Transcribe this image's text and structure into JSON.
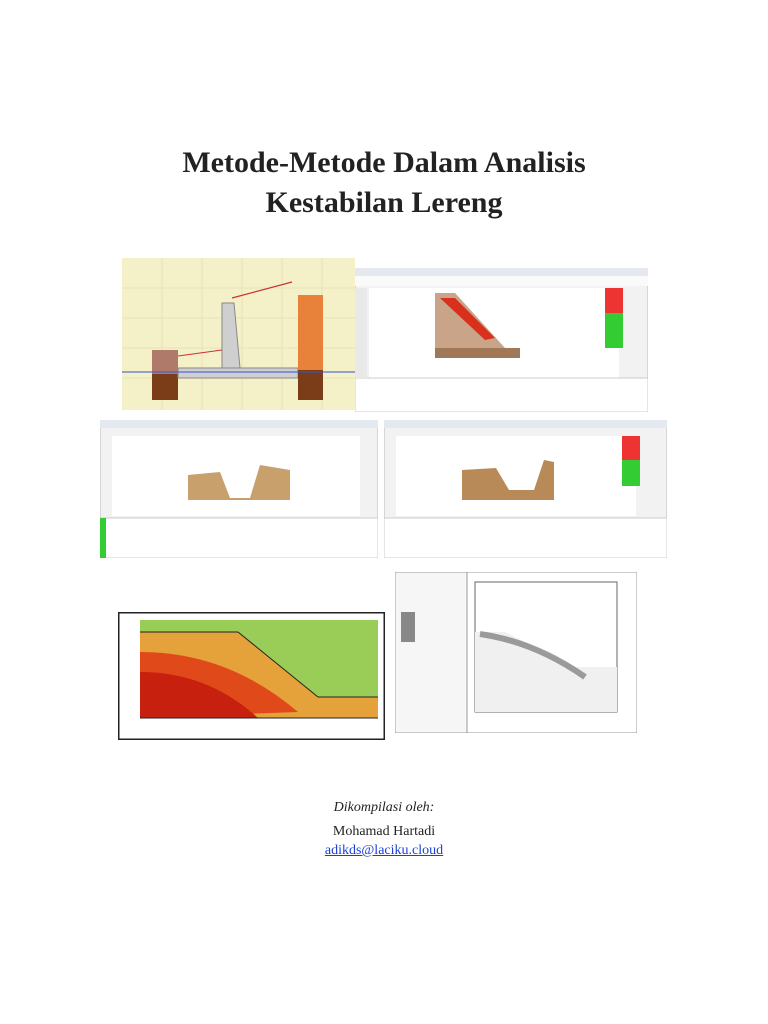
{
  "header": {
    "title_lines": [
      "Metode-Metode Dalam Analisis",
      "Kestabilan Lereng"
    ]
  },
  "credits": {
    "label": "Dikompilasi oleh:",
    "author": "Mohamad Hartadi",
    "email": "adikds@laciku.cloud"
  }
}
